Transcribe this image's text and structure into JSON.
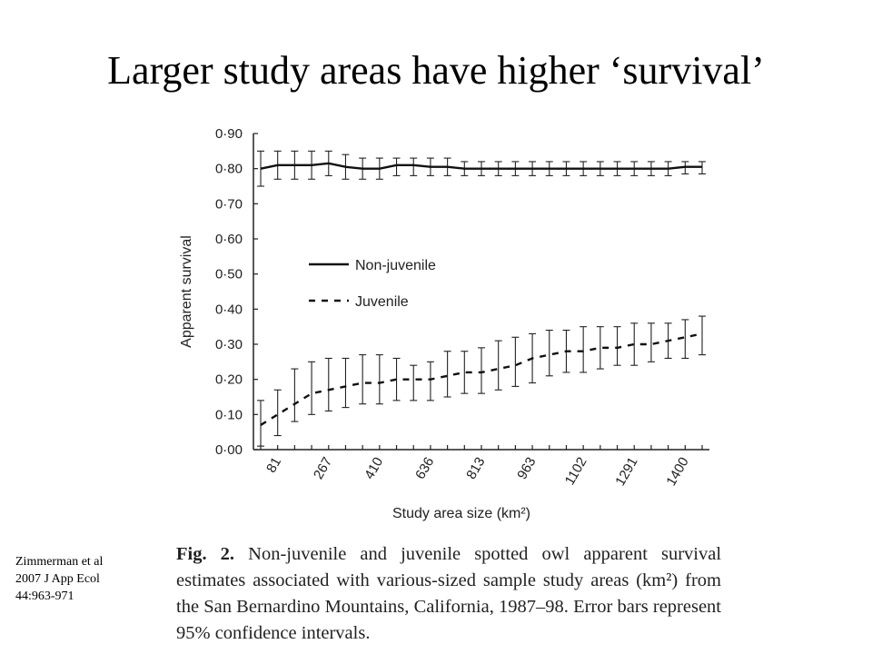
{
  "slide": {
    "title": "Larger study areas have higher ‘survival’"
  },
  "citation": {
    "lines": [
      "Zimmerman et al",
      "2007 J App Ecol",
      "44:963-971"
    ]
  },
  "caption": {
    "label": "Fig. 2.",
    "text": "Non-juvenile and juvenile spotted owl apparent survival estimates associated with various-sized sample study areas (km²) from the San Bernardino Mountains, California, 1987–98. Error bars represent 95% confidence intervals."
  },
  "chart_data": {
    "type": "line",
    "xlabel": "Study area size (km²)",
    "ylabel": "Apparent survival",
    "ylim": [
      0,
      0.9
    ],
    "y_ticks": [
      "0·00",
      "0·10",
      "0·20",
      "0·30",
      "0·40",
      "0·50",
      "0·60",
      "0·70",
      "0·80",
      "0·90"
    ],
    "x_tick_labels": [
      "81",
      "267",
      "410",
      "636",
      "813",
      "963",
      "1102",
      "1291",
      "1400"
    ],
    "x_label_positions": [
      1,
      4,
      7,
      10,
      13,
      16,
      19,
      22,
      25
    ],
    "x_count": 27,
    "legend": "center-right",
    "series": [
      {
        "name": "Non-juvenile",
        "style": "solid",
        "values": [
          0.8,
          0.81,
          0.81,
          0.81,
          0.815,
          0.805,
          0.8,
          0.8,
          0.81,
          0.81,
          0.805,
          0.805,
          0.8,
          0.8,
          0.8,
          0.8,
          0.8,
          0.8,
          0.8,
          0.8,
          0.8,
          0.8,
          0.8,
          0.8,
          0.8,
          0.805,
          0.805
        ],
        "lower": [
          0.75,
          0.77,
          0.77,
          0.77,
          0.78,
          0.77,
          0.77,
          0.77,
          0.78,
          0.78,
          0.78,
          0.78,
          0.78,
          0.78,
          0.78,
          0.78,
          0.78,
          0.78,
          0.78,
          0.78,
          0.78,
          0.78,
          0.78,
          0.78,
          0.78,
          0.785,
          0.785
        ],
        "upper": [
          0.85,
          0.85,
          0.85,
          0.85,
          0.85,
          0.84,
          0.83,
          0.83,
          0.83,
          0.83,
          0.83,
          0.83,
          0.82,
          0.82,
          0.82,
          0.82,
          0.82,
          0.82,
          0.82,
          0.82,
          0.82,
          0.82,
          0.82,
          0.82,
          0.82,
          0.82,
          0.82
        ]
      },
      {
        "name": "Juvenile",
        "style": "dashed",
        "values": [
          0.07,
          0.1,
          0.13,
          0.16,
          0.17,
          0.18,
          0.19,
          0.19,
          0.2,
          0.2,
          0.2,
          0.21,
          0.22,
          0.22,
          0.23,
          0.24,
          0.26,
          0.27,
          0.28,
          0.28,
          0.29,
          0.29,
          0.3,
          0.3,
          0.31,
          0.32,
          0.33
        ],
        "lower": [
          0.01,
          0.04,
          0.08,
          0.1,
          0.11,
          0.12,
          0.13,
          0.13,
          0.14,
          0.14,
          0.14,
          0.15,
          0.16,
          0.16,
          0.17,
          0.18,
          0.19,
          0.21,
          0.22,
          0.22,
          0.23,
          0.24,
          0.24,
          0.25,
          0.26,
          0.26,
          0.27
        ],
        "upper": [
          0.14,
          0.17,
          0.23,
          0.25,
          0.26,
          0.26,
          0.27,
          0.27,
          0.26,
          0.24,
          0.25,
          0.28,
          0.28,
          0.29,
          0.31,
          0.32,
          0.33,
          0.34,
          0.34,
          0.35,
          0.35,
          0.35,
          0.36,
          0.36,
          0.36,
          0.37,
          0.38
        ]
      }
    ]
  }
}
